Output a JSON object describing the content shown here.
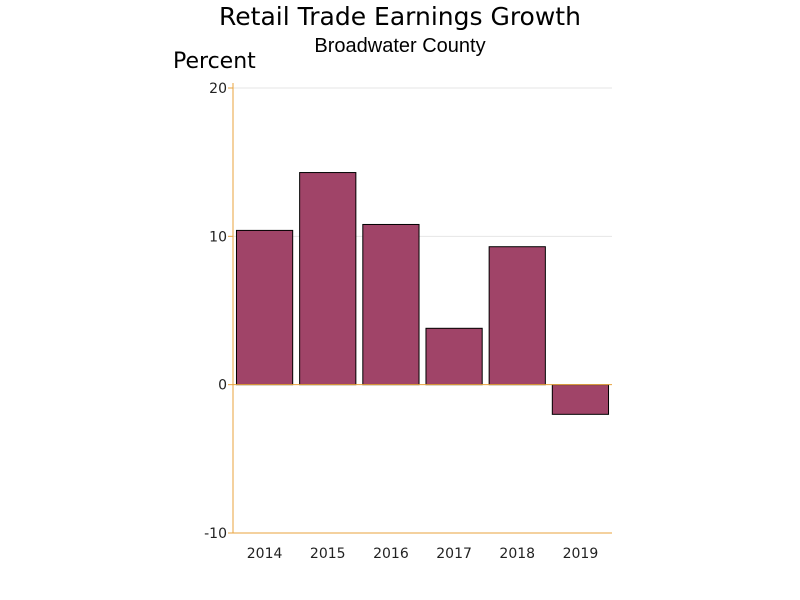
{
  "chart_data": {
    "type": "bar",
    "title": "Retail Trade Earnings Growth",
    "subtitle": "Broadwater County",
    "ylabel": "Percent",
    "xlabel": "",
    "categories": [
      "2014",
      "2015",
      "2016",
      "2017",
      "2018",
      "2019"
    ],
    "values": [
      10.4,
      14.3,
      10.8,
      3.8,
      9.3,
      -2.0
    ],
    "ylim": [
      -10,
      20
    ],
    "yticks": [
      -10,
      0,
      10,
      20
    ],
    "ytick_labels": [
      "-10",
      "0",
      "10",
      "20"
    ],
    "grid": true,
    "legend": "none",
    "colors": {
      "bar_fill": "#a04468",
      "bar_stroke": "#000000",
      "axis": "#e8a33d",
      "grid": "#e6e6e6"
    }
  }
}
